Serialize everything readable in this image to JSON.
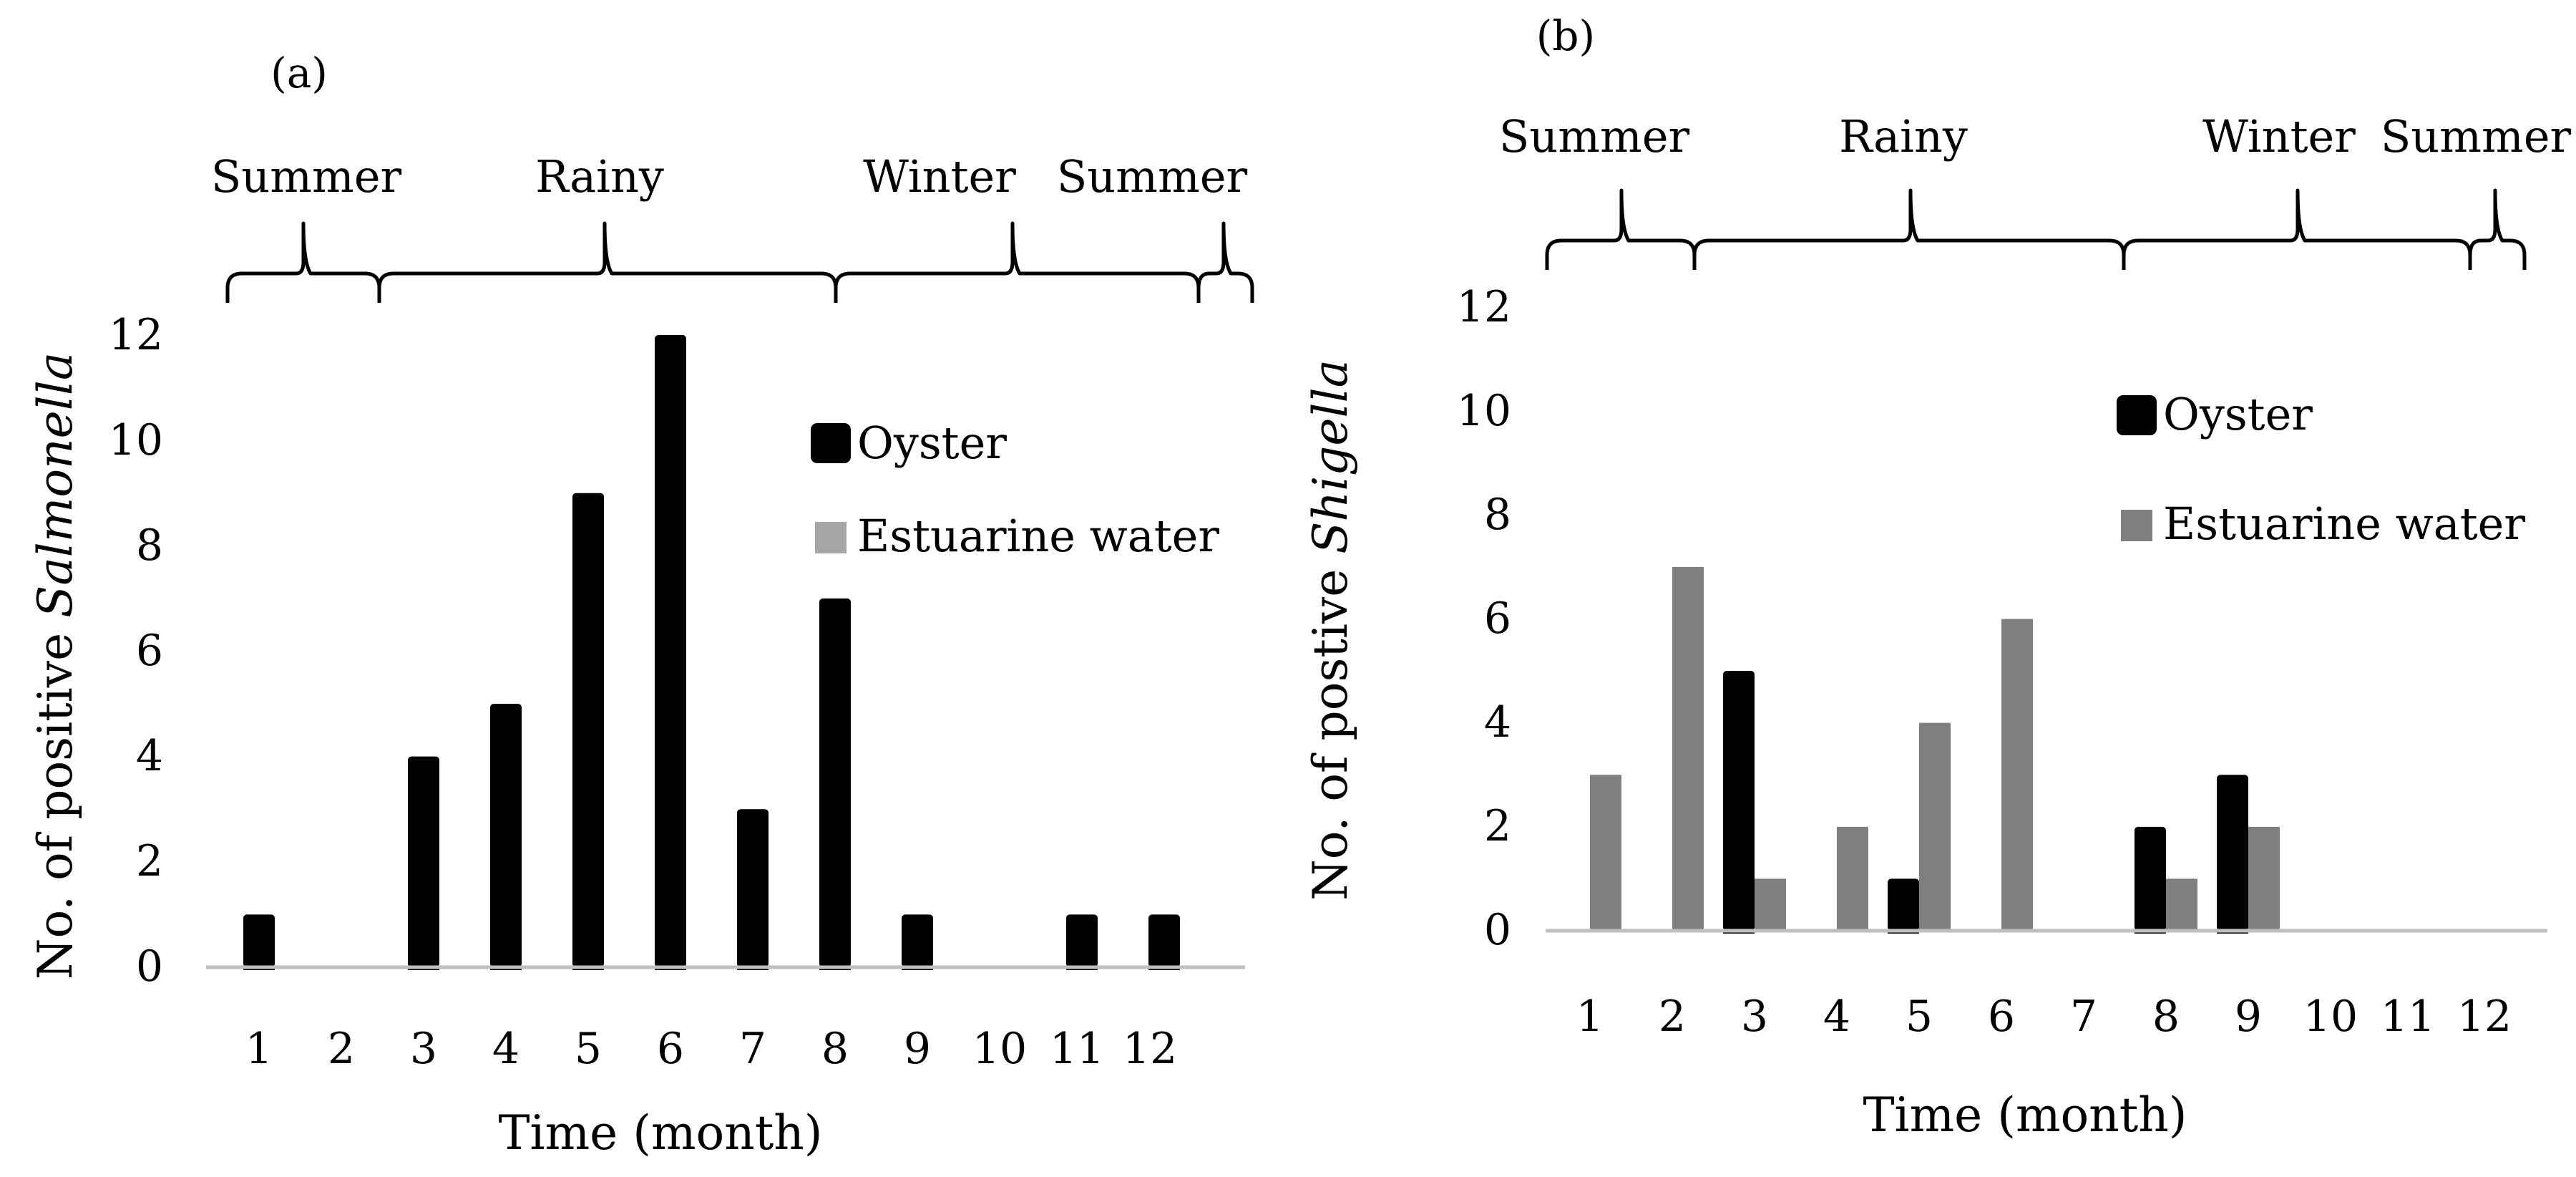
{
  "colors": {
    "oyster": "#000000",
    "estuarine_a": "#a6a6a6",
    "estuarine_b": "#7f7f7f",
    "axis": "#bfbfbf"
  },
  "chart_data": [
    {
      "panel_label": "(a)",
      "type": "bar",
      "categories": [
        "1",
        "2",
        "3",
        "4",
        "5",
        "6",
        "7",
        "8",
        "9",
        "10",
        "11",
        "12"
      ],
      "series": [
        {
          "name": "Oyster",
          "values": [
            1,
            0,
            4,
            5,
            9,
            12,
            3,
            7,
            1,
            0,
            1,
            1
          ]
        },
        {
          "name": "Estuarine water",
          "values": [
            0,
            0,
            0,
            0,
            0,
            0,
            0,
            0,
            0,
            0,
            0,
            0
          ]
        }
      ],
      "ylabel": "No. of positive ",
      "ylabel_italic": "Salmonella",
      "xlabel": "Time (month)",
      "ylim": [
        0,
        12
      ],
      "yticks": [
        "0",
        "2",
        "4",
        "6",
        "8",
        "10",
        "12"
      ],
      "seasons": [
        "Summer",
        "Rainy",
        "Winter",
        "Summer"
      ],
      "legend": "top-right",
      "grid": false
    },
    {
      "panel_label": "(b)",
      "type": "bar",
      "categories": [
        "1",
        "2",
        "3",
        "4",
        "5",
        "6",
        "7",
        "8",
        "9",
        "10",
        "11",
        "12"
      ],
      "series": [
        {
          "name": "Oyster",
          "values": [
            0,
            0,
            5,
            0,
            1,
            0,
            0,
            2,
            3,
            0,
            0,
            0
          ]
        },
        {
          "name": "Estuarine water",
          "values": [
            3,
            7,
            1,
            2,
            4,
            6,
            0,
            1,
            2,
            0,
            0,
            0
          ]
        }
      ],
      "ylabel": "No. of postive ",
      "ylabel_italic": "Shigella",
      "xlabel": "Time (month)",
      "ylim": [
        0,
        12
      ],
      "yticks": [
        "0",
        "2",
        "4",
        "6",
        "8",
        "10",
        "12"
      ],
      "seasons": [
        "Summer",
        "Rainy",
        "Winter",
        "Summer"
      ],
      "legend": "top-right",
      "grid": false
    }
  ]
}
